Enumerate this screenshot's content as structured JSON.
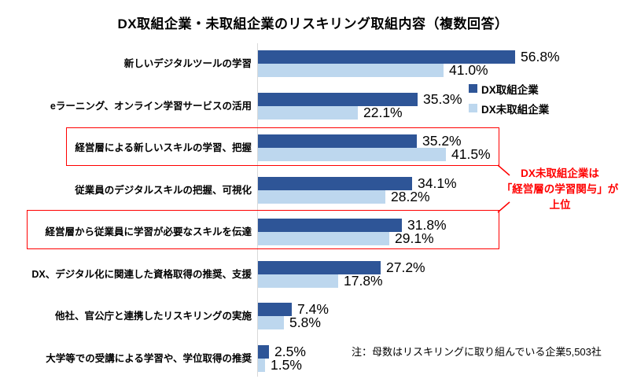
{
  "chart_data": {
    "type": "bar",
    "orientation": "horizontal",
    "title": "DX取組企業・未取組企業のリスキリング取組内容（複数回答）",
    "categories": [
      "新しいデジタルツールの学習",
      "eラーニング、オンライン学習サービスの活用",
      "経営層による新しいスキルの学習、把握",
      "従業員のデジタルスキルの把握、可視化",
      "経営層から従業員に学習が必要なスキルを伝達",
      "DX、デジタル化に関連した資格取得の推奨、支援",
      "他社、官公庁と連携したリスキリングの実施",
      "大学等での受講による学習や、学位取得の推奨"
    ],
    "series": [
      {
        "name": "DX取組企業",
        "color": "#2e5597",
        "values": [
          56.8,
          35.3,
          35.2,
          34.1,
          31.8,
          27.2,
          7.4,
          2.5
        ]
      },
      {
        "name": "DX未取組企業",
        "color": "#bdd7ee",
        "values": [
          41.0,
          22.1,
          41.5,
          28.2,
          29.1,
          17.8,
          5.8,
          1.5
        ]
      }
    ],
    "value_suffix": "%",
    "value_decimals": 1,
    "xlim": [
      0,
      60
    ],
    "grid": false,
    "legend_position": "upper-right",
    "highlighted_category_indexes": [
      2,
      4
    ]
  },
  "annotation": {
    "lines": [
      "DX未取組企業は",
      "「経営層の学習関与」が",
      "上位"
    ],
    "color": "#ff0000"
  },
  "note": "注：母数はリスキリングに取り組んでいる企業5,503社",
  "colors": {
    "series_dx": "#2e5597",
    "series_non_dx": "#bdd7ee",
    "highlight": "#ff0000",
    "axis": "#d9d9d9"
  }
}
